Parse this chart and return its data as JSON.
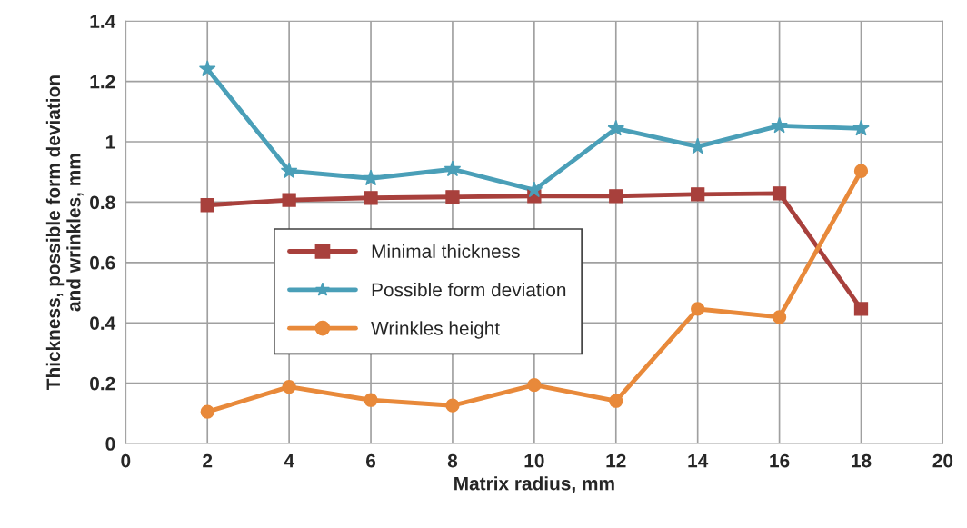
{
  "chart_data": {
    "type": "line",
    "xlabel": "Matrix radius, mm",
    "ylabel": "Thickness, possible form deviation\nand wrinkles, mm",
    "x": [
      2,
      4,
      6,
      8,
      10,
      12,
      14,
      16,
      18
    ],
    "series": [
      {
        "name": "Minimal thickness",
        "color": "#a8403c",
        "marker": "square",
        "values": [
          0.79,
          0.807,
          0.814,
          0.817,
          0.82,
          0.82,
          0.826,
          0.829,
          0.446
        ]
      },
      {
        "name": "Possible form deviation",
        "color": "#4a9fb8",
        "marker": "star",
        "values": [
          1.241,
          0.903,
          0.879,
          0.909,
          0.84,
          1.044,
          0.984,
          1.053,
          1.044
        ]
      },
      {
        "name": "Wrinkles height",
        "color": "#e8893a",
        "marker": "circle",
        "values": [
          0.105,
          0.188,
          0.144,
          0.126,
          0.194,
          0.141,
          0.446,
          0.419,
          0.903
        ]
      }
    ],
    "xlim": [
      0,
      20
    ],
    "xticks": [
      0,
      2,
      4,
      6,
      8,
      10,
      12,
      14,
      16,
      18,
      20
    ],
    "ylim": [
      0,
      1.4
    ],
    "yticks": [
      0,
      0.2,
      0.4,
      0.6,
      0.8,
      1,
      1.2,
      1.4
    ],
    "grid": true,
    "legend": "center",
    "line_style": "solid"
  }
}
